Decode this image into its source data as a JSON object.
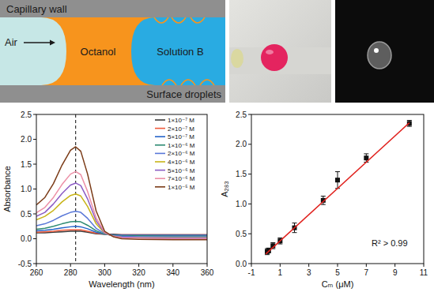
{
  "diagram": {
    "wall_label": "Capillary wall",
    "phases": [
      "Air",
      "Octanol",
      "Solution B"
    ],
    "droplets_label": "Surface droplets"
  },
  "chart_data": [
    {
      "type": "line",
      "x_label": "Wavelength (nm)",
      "y_label": "Absorbance",
      "x": [
        260,
        265,
        270,
        275,
        280,
        283,
        286,
        290,
        295,
        300,
        305,
        310,
        320,
        340,
        360
      ],
      "xlim": [
        260,
        360
      ],
      "xticks": [
        260,
        280,
        300,
        320,
        340,
        360
      ],
      "ylim": [
        -0.5,
        2.5
      ],
      "yticks": [
        -0.5,
        {
          "value": 0,
          "label": "0.0"
        },
        0.5,
        {
          "value": 1,
          "label": "1.0"
        },
        1.5,
        {
          "value": 2,
          "label": "2.0"
        },
        2.5
      ],
      "grid": false,
      "legend": "upper right",
      "vline": 283,
      "line_style": "solid",
      "series": [
        {
          "name": "1×10⁻⁷ M",
          "color": "#3a3a3a",
          "values": [
            0.12,
            0.12,
            0.13,
            0.14,
            0.15,
            0.15,
            0.15,
            0.13,
            0.1,
            0.09,
            0.09,
            0.08,
            0.08,
            0.08,
            0.08
          ]
        },
        {
          "name": "2×10⁻⁷ M",
          "color": "#ef5a3c",
          "values": [
            0.13,
            0.14,
            0.15,
            0.17,
            0.18,
            0.18,
            0.18,
            0.15,
            0.11,
            0.09,
            0.08,
            0.08,
            0.08,
            0.08,
            0.08
          ]
        },
        {
          "name": "5×10⁻⁷ M",
          "color": "#2563c9",
          "values": [
            0.16,
            0.17,
            0.19,
            0.22,
            0.24,
            0.25,
            0.24,
            0.2,
            0.13,
            0.09,
            0.08,
            0.07,
            0.07,
            0.07,
            0.07
          ]
        },
        {
          "name": "1×10⁻⁶ M",
          "color": "#2e8b73",
          "values": [
            0.19,
            0.21,
            0.25,
            0.3,
            0.34,
            0.35,
            0.34,
            0.27,
            0.16,
            0.09,
            0.07,
            0.06,
            0.06,
            0.05,
            0.05
          ]
        },
        {
          "name": "2×10⁻⁶ M",
          "color": "#5a78d8",
          "values": [
            0.26,
            0.3,
            0.37,
            0.46,
            0.53,
            0.55,
            0.53,
            0.41,
            0.21,
            0.1,
            0.06,
            0.05,
            0.04,
            0.04,
            0.04
          ]
        },
        {
          "name": "4×10⁻⁶ M",
          "color": "#c8b418",
          "values": [
            0.38,
            0.45,
            0.57,
            0.74,
            0.87,
            0.9,
            0.86,
            0.65,
            0.3,
            0.11,
            0.05,
            0.03,
            0.02,
            0.02,
            0.02
          ]
        },
        {
          "name": "5×10⁻⁶ M",
          "color": "#8b5cc4",
          "values": [
            0.45,
            0.53,
            0.7,
            0.91,
            1.08,
            1.12,
            1.07,
            0.8,
            0.36,
            0.12,
            0.05,
            0.03,
            0.02,
            0.01,
            0.01
          ]
        },
        {
          "name": "7×10⁻⁶ M",
          "color": "#ec8fa6",
          "values": [
            0.52,
            0.63,
            0.83,
            1.09,
            1.3,
            1.35,
            1.29,
            0.95,
            0.42,
            0.13,
            0.05,
            0.02,
            0.01,
            0.0,
            0.0
          ]
        },
        {
          "name": "1×10⁻⁵ M",
          "color": "#7b3b17",
          "values": [
            0.68,
            0.83,
            1.11,
            1.48,
            1.78,
            1.85,
            1.76,
            1.3,
            0.56,
            0.15,
            0.04,
            0.0,
            -0.01,
            -0.02,
            -0.02
          ]
        }
      ]
    },
    {
      "type": "scatter",
      "x_label": "Cₘ (μM)",
      "y_label": "A₂₈₃",
      "annotation": "R² > 0.99",
      "xlim": [
        -1,
        11
      ],
      "xticks": [
        -1,
        1,
        3,
        5,
        7,
        9,
        11
      ],
      "ylim": [
        0,
        2.5
      ],
      "yticks": [
        {
          "value": 0,
          "label": "0.0"
        },
        0.5,
        {
          "value": 1,
          "label": "1.0"
        },
        1.5,
        {
          "value": 2,
          "label": "2.0"
        },
        2.5
      ],
      "grid": false,
      "series": [
        {
          "type": "scatter",
          "color": "#111111",
          "marker": "square",
          "x": [
            0.1,
            0.2,
            0.5,
            1,
            2,
            4,
            5,
            7,
            10
          ],
          "values": [
            0.2,
            0.22,
            0.3,
            0.38,
            0.6,
            1.06,
            1.4,
            1.77,
            2.35
          ],
          "errors": [
            0.05,
            0.04,
            0.05,
            0.05,
            0.08,
            0.07,
            0.14,
            0.07,
            0.05
          ]
        },
        {
          "type": "line",
          "color": "#e0201c",
          "line_style": "solid",
          "x": [
            0,
            10
          ],
          "values": [
            0.16,
            2.36
          ]
        }
      ]
    }
  ]
}
